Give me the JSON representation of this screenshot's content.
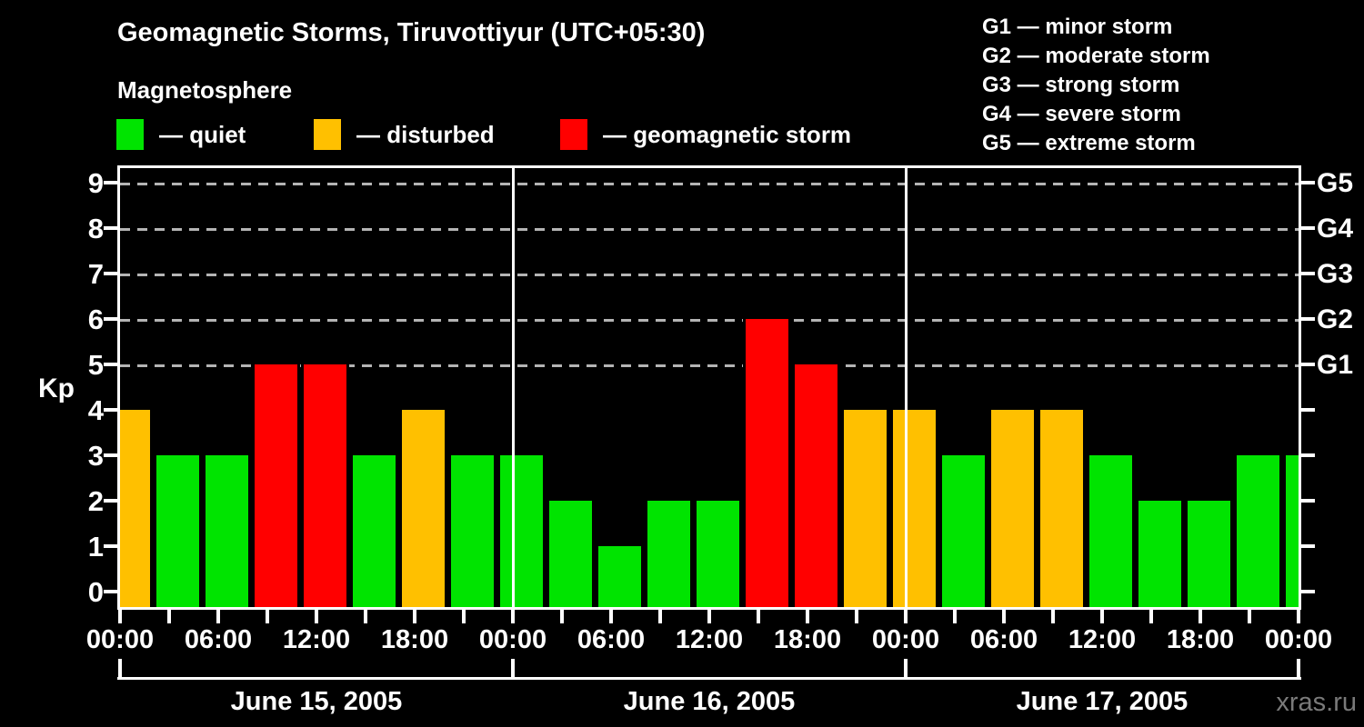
{
  "header": {
    "title": "Geomagnetic Storms, Tiruvottiyur (UTC+05:30)",
    "subtitle": "Magnetosphere",
    "legend": [
      {
        "status": "quiet",
        "label": "— quiet",
        "color": "#00e400"
      },
      {
        "status": "disturbed",
        "label": "— disturbed",
        "color": "#ffc000"
      },
      {
        "status": "storm",
        "label": "— geomagnetic storm",
        "color": "#ff0000"
      }
    ],
    "g_scale_legend": [
      "G1 — minor storm",
      "G2 — moderate storm",
      "G3 — strong storm",
      "G4 — severe storm",
      "G5 — extreme storm"
    ]
  },
  "watermark": "xras.ru",
  "colors": {
    "background": "#000000",
    "axis": "#ffffff",
    "gridline": "#b4b4b4",
    "watermark": "#7a7a7a"
  },
  "chart_data": {
    "type": "bar",
    "title": "Geomagnetic Storms, Tiruvottiyur (UTC+05:30)",
    "ylabel": "Kp",
    "ylim": [
      0,
      9
    ],
    "y_ticks": [
      0,
      1,
      2,
      3,
      4,
      5,
      6,
      7,
      8,
      9
    ],
    "grid_levels": [
      5,
      6,
      7,
      8,
      9
    ],
    "grid_style": "dashed horizontal lines at Kp 5–9 only",
    "right_axis_labels": [
      {
        "label": "G5",
        "kp": 9
      },
      {
        "label": "G4",
        "kp": 8
      },
      {
        "label": "G3",
        "kp": 7
      },
      {
        "label": "G2",
        "kp": 6
      },
      {
        "label": "G1",
        "kp": 5
      }
    ],
    "x_tick_labels": [
      "00:00",
      "06:00",
      "12:00",
      "18:00",
      "00:00",
      "06:00",
      "12:00",
      "18:00",
      "00:00",
      "06:00",
      "12:00",
      "18:00",
      "00:00"
    ],
    "interval_hours": 3,
    "days": [
      {
        "date": "June 15, 2005",
        "kp": [
          4,
          3,
          3,
          5,
          5,
          3,
          4,
          3
        ]
      },
      {
        "date": "June 16, 2005",
        "kp": [
          3,
          2,
          1,
          2,
          2,
          6,
          5,
          4
        ]
      },
      {
        "date": "June 17, 2005",
        "kp": [
          4,
          3,
          4,
          4,
          3,
          2,
          2,
          3
        ]
      }
    ],
    "next_interval_kp": 3,
    "color_rule": {
      "quiet": "kp <= 3",
      "disturbed": "kp == 4",
      "storm": "kp >= 5"
    }
  }
}
